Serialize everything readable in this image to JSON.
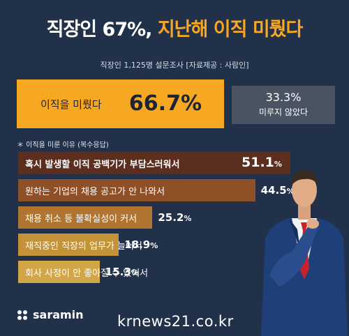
{
  "header": {
    "title_white": "직장인 67%,",
    "title_yellow": "지난해 이직 미뤘다",
    "subtitle": "직장인 1,125명 설문조사 [자료제공 : 사람인]"
  },
  "split": {
    "main_label": "이직을 미뤘다",
    "main_value": "66.7%",
    "rest_value": "33.3%",
    "rest_label": "미루지 않았다"
  },
  "reasons_heading": "＊ 이직을 미룬 이유 (복수응답)",
  "brand": {
    "logo_text": "saramin"
  },
  "watermark": "krnews21.co.kr",
  "colors": {
    "background": "#22314a",
    "accent_yellow": "#f7a823",
    "gray_segment": "#4a5361",
    "bar_colors": [
      "#5c2e1f",
      "#8f5028",
      "#b07530",
      "#c39239",
      "#d2a646"
    ]
  },
  "chart_data": [
    {
      "type": "bar",
      "orientation": "horizontal",
      "title": "",
      "categories": [
        "이직을 미뤘다",
        "미루지 않았다"
      ],
      "values": [
        66.7,
        33.3
      ],
      "value_labels": [
        "66.7%",
        "33.3%"
      ],
      "unit": "%",
      "stacked": true
    },
    {
      "type": "bar",
      "orientation": "horizontal",
      "title": "",
      "categories": [
        "혹시 발생할 이직 공백기가 부담스러워서",
        "원하는 기업의 채용 공고가 안 나와서",
        "채용 취소 등 불확실성이 커서",
        "재직중인 직장의 업무가 늘어서",
        "회사 사정이 안 좋아질 수 있어서"
      ],
      "values": [
        51.1,
        44.5,
        25.2,
        18.9,
        15.3
      ],
      "unit": "%",
      "xlim": [
        0,
        100
      ]
    }
  ]
}
